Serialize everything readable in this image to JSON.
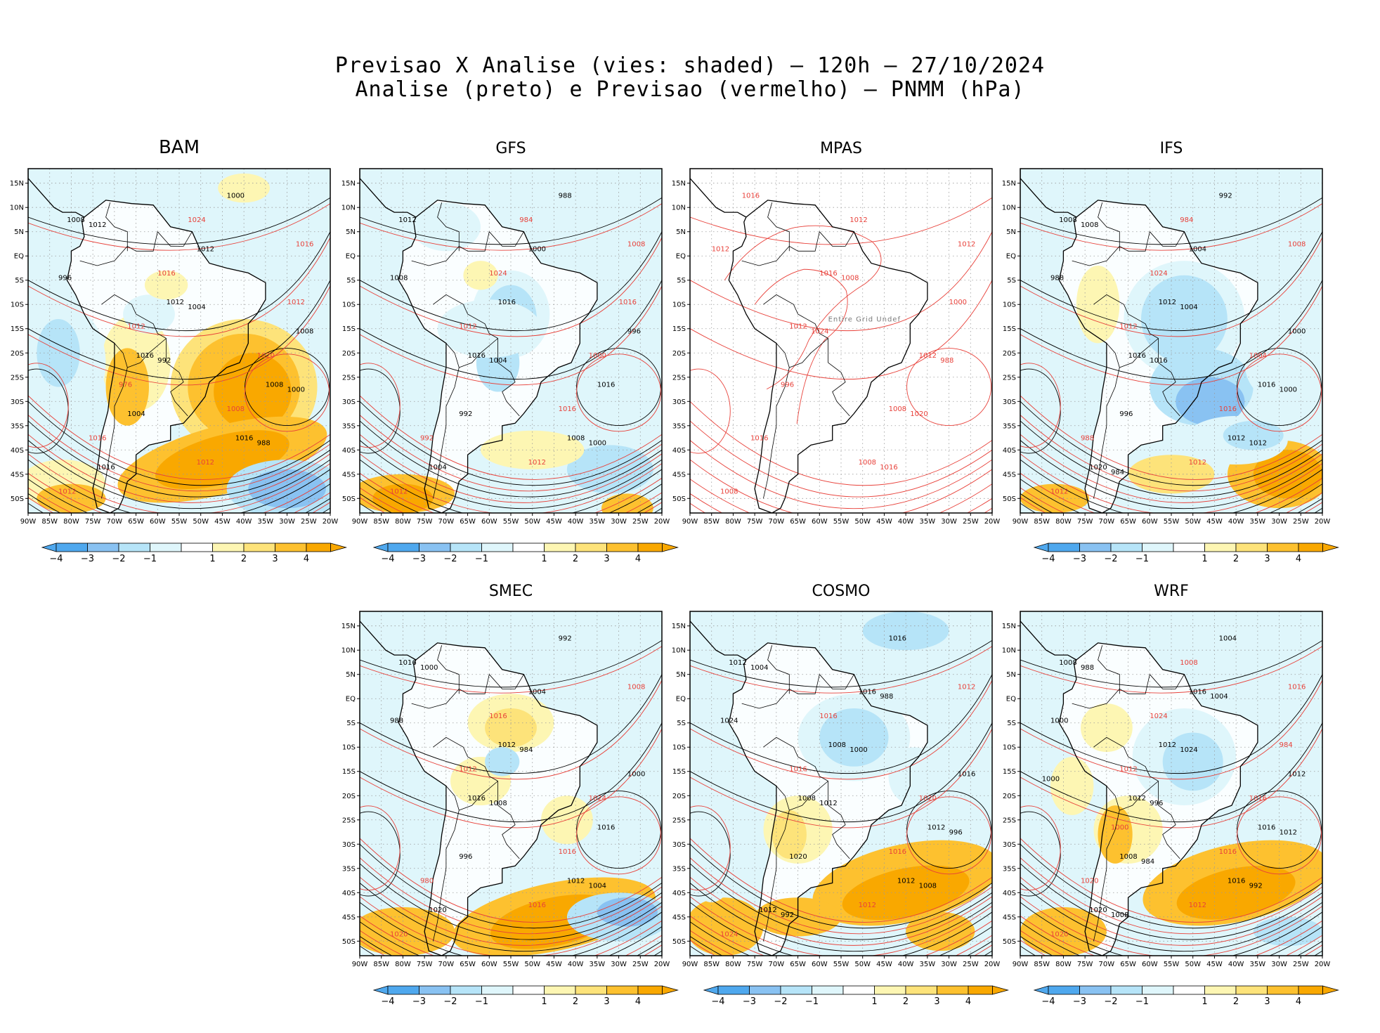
{
  "title": {
    "line1": "Previsao X Analise (vies: shaded) — 120h — 27/10/2024",
    "line2": "Analise (preto) e Previsao (vermelho) — PNMM (hPa)"
  },
  "colors": {
    "analysis_contour": "#000000",
    "forecast_contour": "#e8413a",
    "bias": {
      "-4": "#4fa8ee",
      "-3": "#89c2f2",
      "-2": "#b6e4f8",
      "-1": "#dff6fb",
      "0": "#ffffff",
      "1": "#fdf6b3",
      "2": "#fde37a",
      "3": "#fdc12f",
      "4": "#f9a800"
    }
  },
  "chart_data": [
    {
      "type": "heatmap",
      "title": "BAM",
      "panel_id": "bam",
      "has_data": true,
      "x_ticks": [
        "90W",
        "85W",
        "80W",
        "75W",
        "70W",
        "65W",
        "60W",
        "55W",
        "50W",
        "45W",
        "40W",
        "35W",
        "30W",
        "25W",
        "20W"
      ],
      "y_ticks": [
        "15N",
        "10N",
        "5N",
        "EQ",
        "5S",
        "10S",
        "15S",
        "20S",
        "25S",
        "30S",
        "35S",
        "40S",
        "45S",
        "50S"
      ],
      "colorbar": [
        -4,
        -3,
        -2,
        -1,
        1,
        2,
        3,
        4
      ],
      "isobar_labels_analysis": [
        1016,
        1016,
        1008,
        1012,
        1008,
        1016,
        1012,
        1008,
        1004,
        1000,
        996,
        992,
        988,
        1012,
        1004,
        1000
      ],
      "isobar_labels_forecast": [
        1012,
        1016,
        1012,
        1008,
        1012,
        1016,
        1020,
        1016,
        1024,
        1012,
        976
      ]
    },
    {
      "type": "heatmap",
      "title": "GFS",
      "panel_id": "gfs",
      "has_data": true,
      "x_ticks": [
        "90W",
        "85W",
        "80W",
        "75W",
        "70W",
        "65W",
        "60W",
        "55W",
        "50W",
        "45W",
        "40W",
        "35W",
        "30W",
        "25W",
        "20W"
      ],
      "y_ticks": [
        "15N",
        "10N",
        "5N",
        "EQ",
        "5S",
        "10S",
        "15S",
        "20S",
        "25S",
        "30S",
        "35S",
        "40S",
        "45S",
        "50S"
      ],
      "colorbar": [
        -4,
        -3,
        -2,
        -1,
        1,
        2,
        3,
        4
      ],
      "isobar_labels_analysis": [
        1016,
        1008,
        1012,
        1016,
        1016,
        1004,
        1000,
        996,
        992,
        988,
        1008,
        1004,
        1000
      ],
      "isobar_labels_forecast": [
        1012,
        1008,
        1012,
        1016,
        1012,
        1024,
        1000,
        992,
        984,
        1016
      ]
    },
    {
      "type": "heatmap",
      "title": "MPAS",
      "panel_id": "mpas",
      "has_data": false,
      "annotation": "Entire Grid Undef",
      "x_ticks": [
        "90W",
        "85W",
        "80W",
        "75W",
        "70W",
        "65W",
        "60W",
        "55W",
        "50W",
        "45W",
        "40W",
        "35W",
        "30W",
        "25W",
        "20W"
      ],
      "y_ticks": [
        "15N",
        "10N",
        "5N",
        "EQ",
        "5S",
        "10S",
        "15S",
        "20S",
        "25S",
        "30S",
        "35S",
        "40S",
        "45S",
        "50S"
      ],
      "isobar_labels_forecast": [
        1008,
        1012,
        1012,
        1008,
        1008,
        1016,
        1012,
        1016,
        1012,
        1000,
        996,
        1016,
        1012,
        1024,
        1020,
        1016,
        1008,
        988
      ]
    },
    {
      "type": "heatmap",
      "title": "IFS",
      "panel_id": "ifs",
      "has_data": true,
      "x_ticks": [
        "90W",
        "85W",
        "80W",
        "75W",
        "70W",
        "65W",
        "60W",
        "55W",
        "50W",
        "45W",
        "40W",
        "35W",
        "30W",
        "25W",
        "20W"
      ],
      "y_ticks": [
        "15N",
        "10N",
        "5N",
        "EQ",
        "5S",
        "10S",
        "15S",
        "20S",
        "25S",
        "30S",
        "35S",
        "40S",
        "45S",
        "50S"
      ],
      "colorbar": [
        -4,
        -3,
        -2,
        -1,
        1,
        2,
        3,
        4
      ],
      "isobar_labels_analysis": [
        1016,
        1012,
        1008,
        1012,
        1016,
        1020,
        1004,
        1000,
        996,
        992,
        988,
        1016,
        1012,
        1008,
        1004,
        1000,
        984
      ],
      "isobar_labels_forecast": [
        1012,
        1008,
        1012,
        1016,
        1012,
        1024,
        1004,
        988,
        984
      ]
    },
    {
      "type": "heatmap",
      "title": "SMEC",
      "panel_id": "smec",
      "has_data": true,
      "x_ticks": [
        "90W",
        "85W",
        "80W",
        "75W",
        "70W",
        "65W",
        "60W",
        "55W",
        "50W",
        "45W",
        "40W",
        "35W",
        "30W",
        "25W",
        "20W"
      ],
      "y_ticks": [
        "15N",
        "10N",
        "5N",
        "EQ",
        "5S",
        "10S",
        "15S",
        "20S",
        "25S",
        "30S",
        "35S",
        "40S",
        "45S",
        "50S"
      ],
      "colorbar": [
        -4,
        -3,
        -2,
        -1,
        1,
        2,
        3,
        4
      ],
      "isobar_labels_analysis": [
        1016,
        1012,
        1016,
        1012,
        1016,
        1020,
        1004,
        1000,
        996,
        992,
        988,
        1008,
        1004,
        1000,
        984
      ],
      "isobar_labels_forecast": [
        1016,
        1008,
        1012,
        1016,
        1020,
        1016,
        1024,
        980
      ]
    },
    {
      "type": "heatmap",
      "title": "COSMO",
      "panel_id": "cosmo",
      "has_data": true,
      "x_ticks": [
        "90W",
        "85W",
        "80W",
        "75W",
        "70W",
        "65W",
        "60W",
        "55W",
        "50W",
        "45W",
        "40W",
        "35W",
        "30W",
        "25W",
        "20W"
      ],
      "y_ticks": [
        "15N",
        "10N",
        "5N",
        "EQ",
        "5S",
        "10S",
        "15S",
        "20S",
        "25S",
        "30S",
        "35S",
        "40S",
        "45S",
        "50S"
      ],
      "colorbar": [
        -4,
        -3,
        -2,
        -1,
        1,
        2,
        3,
        4
      ],
      "isobar_labels_analysis": [
        1008,
        1012,
        1012,
        1008,
        1012,
        1012,
        1016,
        1016,
        1020,
        1016,
        1024,
        1012,
        1008,
        1004,
        1000,
        996,
        992,
        988
      ],
      "isobar_labels_forecast": [
        1012,
        1012,
        1016,
        1016,
        1024,
        1016,
        1020
      ]
    },
    {
      "type": "heatmap",
      "title": "WRF",
      "panel_id": "wrf",
      "has_data": true,
      "x_ticks": [
        "90W",
        "85W",
        "80W",
        "75W",
        "70W",
        "65W",
        "60W",
        "55W",
        "50W",
        "45W",
        "40W",
        "35W",
        "30W",
        "25W",
        "20W"
      ],
      "y_ticks": [
        "15N",
        "10N",
        "5N",
        "EQ",
        "5S",
        "10S",
        "15S",
        "20S",
        "25S",
        "30S",
        "35S",
        "40S",
        "45S",
        "50S"
      ],
      "colorbar": [
        -4,
        -3,
        -2,
        -1,
        1,
        2,
        3,
        4
      ],
      "isobar_labels_analysis": [
        1012,
        1016,
        1008,
        1012,
        1016,
        1020,
        1016,
        1012,
        1008,
        1004,
        1000,
        996,
        992,
        988,
        1024,
        1012,
        1008,
        1004,
        1000,
        984
      ],
      "isobar_labels_forecast": [
        1012,
        1016,
        1012,
        1016,
        1020,
        1024,
        1016,
        1020,
        1008,
        984,
        1000
      ]
    }
  ]
}
